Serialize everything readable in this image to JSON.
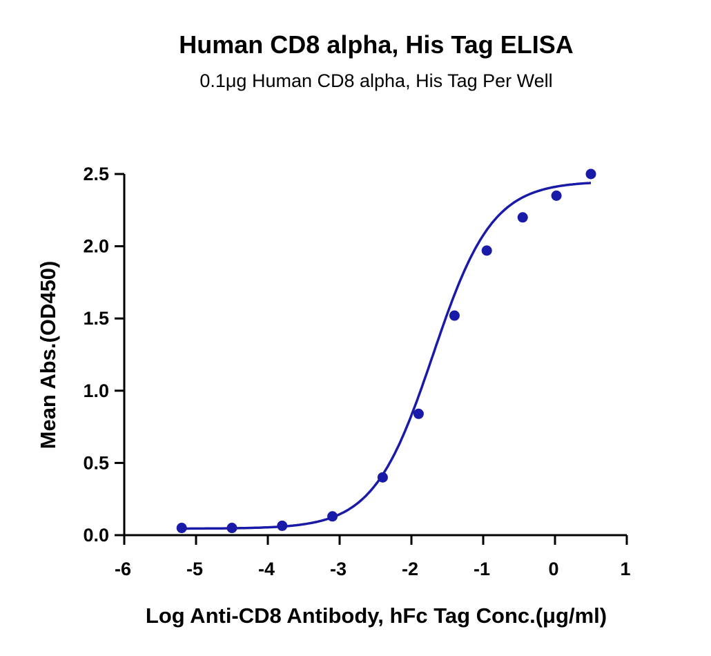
{
  "chart_data": {
    "type": "scatter",
    "title": "Human CD8 alpha, His Tag ELISA",
    "subtitle": "0.1μg Human CD8 alpha, His Tag Per Well",
    "xlabel": "Log Anti-CD8 Antibody, hFc Tag Conc.(μg/ml)",
    "ylabel": "Mean Abs.(OD450)",
    "xlim": [
      -6,
      1
    ],
    "ylim": [
      0,
      2.5
    ],
    "xticks": [
      "-6",
      "-5",
      "-4",
      "-3",
      "-2",
      "-1",
      "0",
      "1"
    ],
    "yticks": [
      "0.0",
      "0.5",
      "1.0",
      "1.5",
      "2.0",
      "2.5"
    ],
    "colors": {
      "series": "#1a1aa8",
      "axis": "#000000"
    },
    "grid": false,
    "series": [
      {
        "style": "points",
        "x": [
          -5.2,
          -4.5,
          -3.8,
          -3.1,
          -2.4,
          -1.9,
          -1.4,
          -0.95,
          -0.45,
          0.02,
          0.5
        ],
        "y": [
          0.05,
          0.05,
          0.065,
          0.13,
          0.4,
          0.84,
          1.52,
          1.97,
          2.2,
          2.35,
          2.5
        ]
      },
      {
        "style": "fit-curve",
        "model": "4PL",
        "bottom": 0.045,
        "top": 2.45,
        "log_ec50": -1.7,
        "hill_slope": 1.05,
        "x_range": [
          -5.2,
          0.5
        ]
      }
    ]
  }
}
